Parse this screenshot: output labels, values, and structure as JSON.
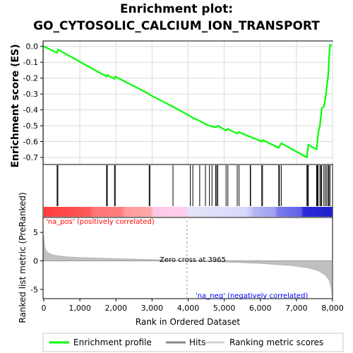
{
  "title_line1": "Enrichment plot:",
  "title_line2": "GO_CYTOSOLIC_CALCIUM_ION_TRANSPORT",
  "colors": {
    "es_line": "#00ff00",
    "hits": "#000000",
    "metric_fill": "#c0c0c0",
    "pos_label": "#ff0000",
    "neg_label": "#0000ff",
    "zero_line": "#a0a0a0"
  },
  "chart_data": [
    {
      "type": "line",
      "name": "enrichment-score",
      "ylabel": "Enrichment score (ES)",
      "xlim": [
        0,
        8000
      ],
      "ylim": [
        -0.74,
        0.03
      ],
      "yticks": [
        0.0,
        -0.1,
        -0.2,
        -0.3,
        -0.4,
        -0.5,
        -0.6,
        -0.7
      ],
      "ytick_labels": [
        "0.0",
        "-0.1",
        "-0.2",
        "-0.3",
        "-0.4",
        "-0.5",
        "-0.6",
        "-0.7"
      ],
      "grid": true,
      "points": [
        [
          0,
          0.0
        ],
        [
          370,
          -0.04
        ],
        [
          390,
          -0.02
        ],
        [
          1740,
          -0.19
        ],
        [
          1760,
          -0.18
        ],
        [
          1960,
          -0.205
        ],
        [
          1980,
          -0.19
        ],
        [
          2920,
          -0.3
        ],
        [
          2940,
          -0.305
        ],
        [
          3580,
          -0.38
        ],
        [
          4060,
          -0.44
        ],
        [
          4130,
          -0.45
        ],
        [
          4320,
          -0.47
        ],
        [
          4480,
          -0.49
        ],
        [
          4590,
          -0.5
        ],
        [
          4660,
          -0.505
        ],
        [
          4760,
          -0.51
        ],
        [
          4790,
          -0.505
        ],
        [
          4820,
          -0.5
        ],
        [
          5050,
          -0.53
        ],
        [
          5100,
          -0.52
        ],
        [
          5360,
          -0.55
        ],
        [
          5410,
          -0.54
        ],
        [
          5720,
          -0.57
        ],
        [
          5730,
          -0.57
        ],
        [
          6040,
          -0.6
        ],
        [
          6060,
          -0.59
        ],
        [
          6510,
          -0.64
        ],
        [
          6530,
          -0.63
        ],
        [
          6580,
          -0.61
        ],
        [
          7290,
          -0.7
        ],
        [
          7310,
          -0.66
        ],
        [
          7330,
          -0.62
        ],
        [
          7560,
          -0.65
        ],
        [
          7580,
          -0.6
        ],
        [
          7600,
          -0.55
        ],
        [
          7650,
          -0.5
        ],
        [
          7680,
          -0.44
        ],
        [
          7700,
          -0.39
        ],
        [
          7760,
          -0.38
        ],
        [
          7800,
          -0.33
        ],
        [
          7840,
          -0.26
        ],
        [
          7880,
          -0.18
        ],
        [
          7900,
          -0.09
        ],
        [
          7930,
          0.01
        ],
        [
          7980,
          0.005
        ]
      ]
    },
    {
      "type": "scatter",
      "name": "hits",
      "hit_positions": [
        370,
        390,
        1740,
        1760,
        1960,
        1980,
        2920,
        2940,
        3580,
        4060,
        4130,
        4320,
        4480,
        4590,
        4660,
        4760,
        4790,
        4820,
        5050,
        5100,
        5360,
        5410,
        5720,
        5730,
        6040,
        6060,
        6510,
        6530,
        6580,
        7290,
        7310,
        7330,
        7560,
        7580,
        7600,
        7650,
        7680,
        7700,
        7760,
        7800,
        7840,
        7880,
        7900,
        7930
      ]
    },
    {
      "type": "area",
      "name": "ranked-list-metric",
      "xlabel": "Rank in Ordered Dataset",
      "ylabel": "Ranked list metric (PreRanked)",
      "xlim": [
        0,
        8000
      ],
      "ylim": [
        -6.5,
        7.5
      ],
      "xticks": [
        0,
        1000,
        2000,
        3000,
        4000,
        5000,
        6000,
        7000,
        8000
      ],
      "xtick_labels": [
        "0",
        "1,000",
        "2,000",
        "3,000",
        "4,000",
        "5,000",
        "6,000",
        "7,000",
        "8,000"
      ],
      "yticks": [
        5,
        0,
        -5
      ],
      "ytick_labels": [
        "5",
        "0",
        "-5"
      ],
      "points": [
        [
          0,
          4.5
        ],
        [
          20,
          2.8
        ],
        [
          60,
          1.8
        ],
        [
          150,
          1.3
        ],
        [
          300,
          1.0
        ],
        [
          600,
          0.75
        ],
        [
          1000,
          0.6
        ],
        [
          2000,
          0.4
        ],
        [
          3000,
          0.25
        ],
        [
          3965,
          0.0
        ],
        [
          5000,
          -0.2
        ],
        [
          6000,
          -0.45
        ],
        [
          6800,
          -0.8
        ],
        [
          7300,
          -1.2
        ],
        [
          7600,
          -1.7
        ],
        [
          7800,
          -2.5
        ],
        [
          7900,
          -3.3
        ],
        [
          7960,
          -4.6
        ],
        [
          7985,
          -6.2
        ],
        [
          7990,
          -6.3
        ]
      ],
      "zero_cross": 3965,
      "zero_cross_label": "Zero cross at 3965"
    }
  ],
  "annotations": {
    "pos_label": "'na_pos' (positively correlated)",
    "neg_label": "'na_neg' (negatively correlated)"
  },
  "legend": {
    "items": [
      "Enrichment profile",
      "Hits",
      "Ranking metric scores"
    ]
  }
}
